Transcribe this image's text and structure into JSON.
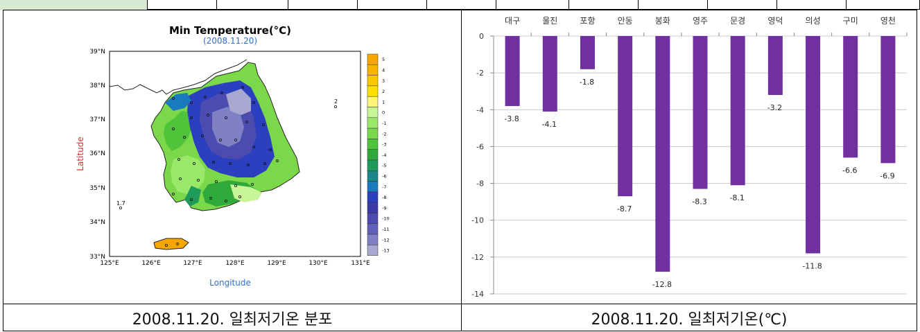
{
  "map_panel": {
    "title": "Min Temperature(°C)",
    "subtitle": "(2008.11.20)",
    "xlabel": "Longitude",
    "ylabel": "Latitude",
    "lat_ticks": [
      "39°N",
      "38°N",
      "37°N",
      "36°N",
      "35°N",
      "34°N",
      "33°N"
    ],
    "lon_ticks": [
      "125°E",
      "126°E",
      "127°E",
      "128°E",
      "129°E",
      "130°E",
      "131°E"
    ],
    "colorbar_labels": [
      "5",
      "4",
      "3",
      "2",
      "1",
      "0",
      "-1",
      "-2",
      "-3",
      "-4",
      "-5",
      "-6",
      "-7",
      "-8",
      "-9",
      "-10",
      "-11",
      "-12",
      "-13"
    ],
    "colorbar_colors": [
      "#f7a600",
      "#f9b400",
      "#fbc800",
      "#fde000",
      "#fff37a",
      "#c8f598",
      "#9ae86a",
      "#7ad84a",
      "#4fc43a",
      "#2faa3a",
      "#1e9a5a",
      "#18888a",
      "#1a7abf",
      "#2b3fbf",
      "#3a3aa8",
      "#4c4cb0",
      "#6060b8",
      "#8080c4",
      "#a8a8d0"
    ],
    "annotation_1": "1.7",
    "annotation_2": "2"
  },
  "chart_data": {
    "type": "bar",
    "categories": [
      "대구",
      "울진",
      "포항",
      "안동",
      "봉화",
      "영주",
      "문경",
      "영덕",
      "의성",
      "구미",
      "영천"
    ],
    "values": [
      -3.8,
      -4.1,
      -1.8,
      -8.7,
      -12.8,
      -8.3,
      -8.1,
      -3.2,
      -11.8,
      -6.6,
      -6.9
    ],
    "y_ticks": [
      0,
      -2,
      -4,
      -6,
      -8,
      -10,
      -12,
      -14
    ],
    "ylim": [
      -14,
      0
    ],
    "bar_color": "#7030a0",
    "grid": true
  },
  "captions": {
    "left": "2008.11.20. 일최저기온 분포",
    "right": "2008.11.20. 일최저기온(℃)"
  }
}
